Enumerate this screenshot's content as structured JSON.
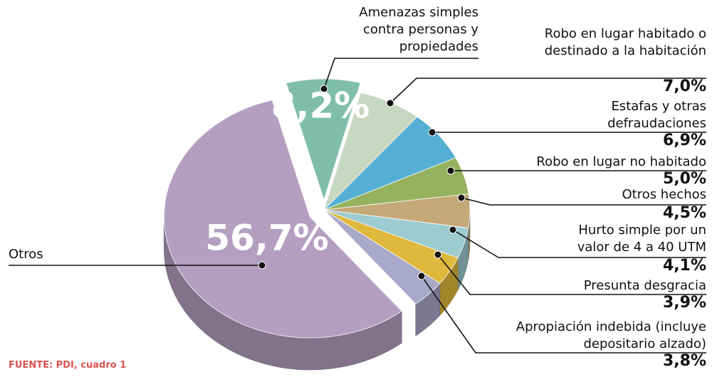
{
  "chart_data": {
    "type": "pie",
    "categories": [
      "Amenazas simples contra personas y propiedades",
      "Robo en lugar habitado o destinado a la habitación",
      "Estafas y otras defraudaciones",
      "Robo en lugar no habitado",
      "Otros hechos",
      "Hurto simple por un valor de 4 a 40 UTM",
      "Presunta desgracia",
      "Apropiación indebida (incluye depositario alzado)",
      "Otros"
    ],
    "values": [
      8.2,
      7.0,
      6.9,
      5.0,
      4.5,
      4.1,
      3.9,
      3.8,
      56.7
    ],
    "value_labels": [
      "8,2%",
      "7,0%",
      "6,9%",
      "5,0%",
      "4,5%",
      "4,1%",
      "3,9%",
      "3,8%",
      "56,7%"
    ],
    "colors": [
      "#7fbfaa",
      "#c8d8c0",
      "#55afd5",
      "#95b35e",
      "#c4a978",
      "#9ccbd0",
      "#e0b93c",
      "#a9a8c8",
      "#b49fc0"
    ],
    "source": "FUENTE: PDI, cuadro 1"
  }
}
